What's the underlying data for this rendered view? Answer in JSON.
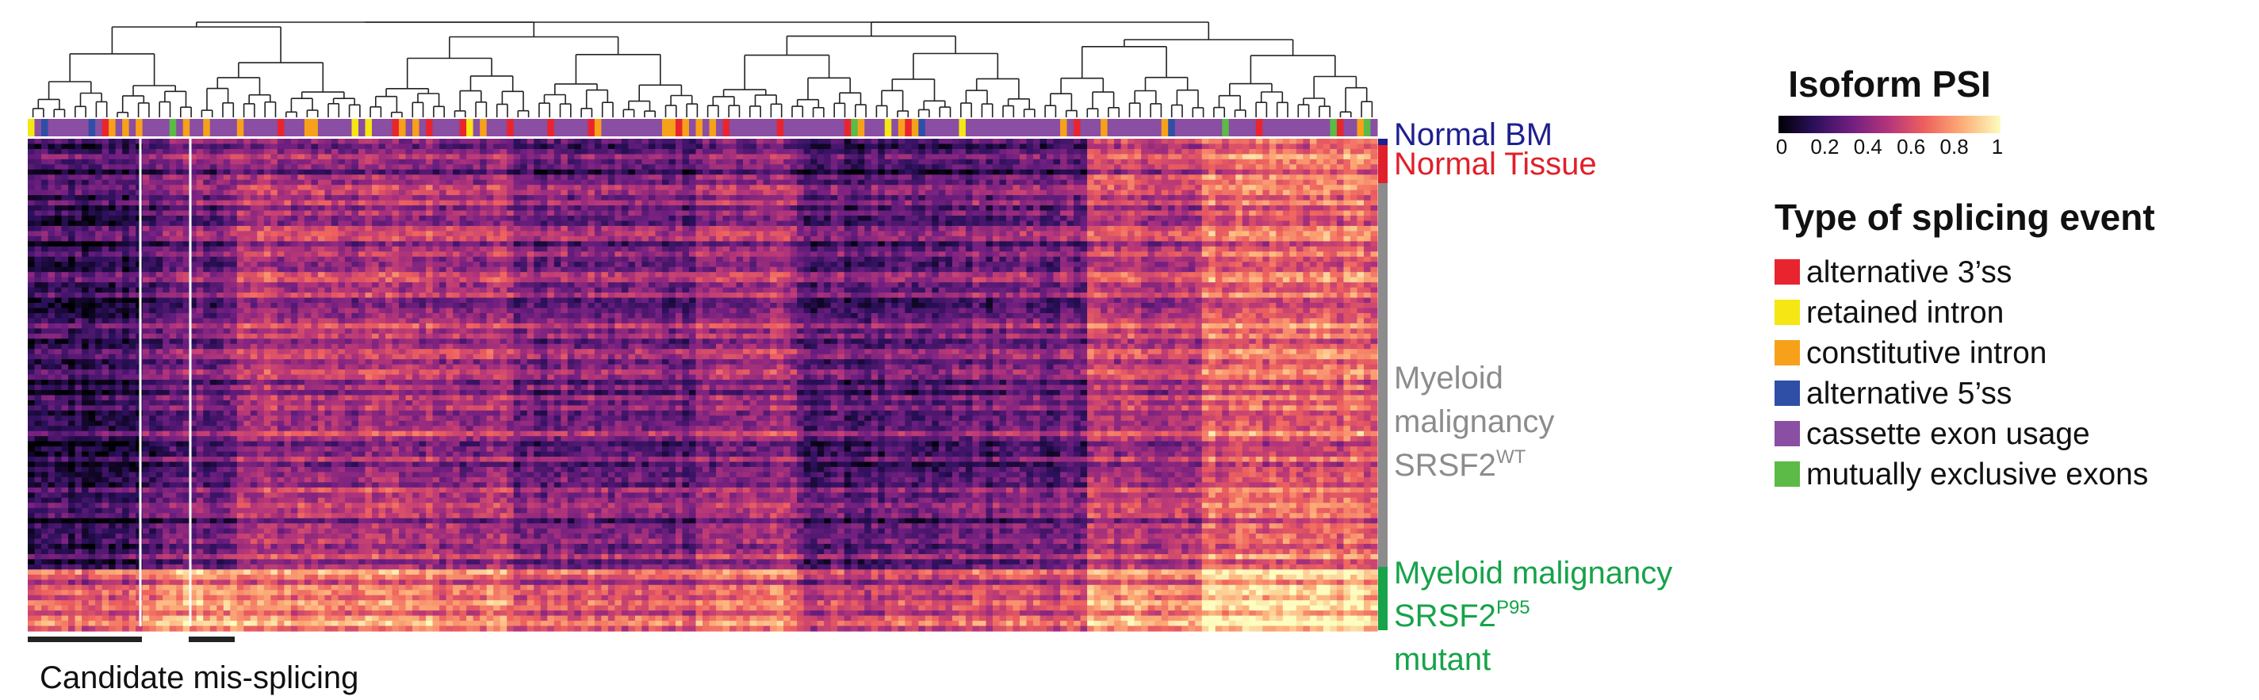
{
  "chart_data": {
    "type": "heatmap",
    "title": "",
    "rows": "splicing events (hierarchically clustered)",
    "columns": "samples",
    "groups": [
      {
        "label": "Normal BM",
        "color": "#1f1f8f"
      },
      {
        "label": "Normal Tissue",
        "color": "#e0202a"
      },
      {
        "label_lines": [
          "Myeloid",
          "malignancy"
        ],
        "label_base": "SRSF2",
        "label_sup": "WT",
        "color": "#8c8c8c"
      },
      {
        "label_lines": [
          "Myeloid malignancy"
        ],
        "label_base": "SRSF2",
        "label_sup": "P95",
        "label_after": "mutant",
        "color": "#16a34a"
      }
    ],
    "colorbar": {
      "title": "Isoform PSI",
      "min": 0,
      "max": 1,
      "ticks": [
        "0",
        "0.2",
        "0.4",
        "0.6",
        "0.8",
        "1"
      ],
      "stops": [
        "#000004",
        "#2c105c",
        "#711f81",
        "#b63679",
        "#ee605e",
        "#fdae78",
        "#fcfdbf"
      ]
    },
    "event_legend": {
      "title": "Type of splicing event",
      "items": [
        {
          "label": "alternative 3’ss",
          "color": "#e8252f"
        },
        {
          "label": "retained intron",
          "color": "#f5e614"
        },
        {
          "label": "constitutive intron",
          "color": "#f7a11a"
        },
        {
          "label": "alternative 5’ss",
          "color": "#2f4fa6"
        },
        {
          "label": "cassette exon usage",
          "color": "#8a4ea2"
        },
        {
          "label": "mutually exclusive exons",
          "color": "#5cba47"
        }
      ]
    },
    "annotation": "Candidate mis-splicing"
  }
}
